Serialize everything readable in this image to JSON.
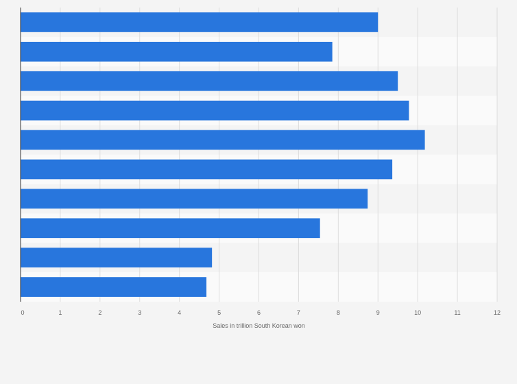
{
  "chart_data": {
    "type": "bar",
    "orientation": "horizontal",
    "categories": [
      "",
      "",
      "",
      "",
      "",
      "",
      "",
      "",
      "",
      ""
    ],
    "values": [
      9.0,
      7.85,
      9.5,
      9.78,
      10.18,
      9.36,
      8.74,
      7.54,
      4.82,
      4.68
    ],
    "xlabel": "Sales in trillion South Korean won",
    "xlim": [
      0,
      12
    ],
    "xticks": [
      0,
      1,
      2,
      3,
      4,
      5,
      6,
      7,
      8,
      9,
      10,
      11,
      12
    ],
    "grid": true,
    "bar_color": "#2876dd",
    "stripe_colors": [
      "#f4f4f4",
      "#fafafa"
    ]
  }
}
